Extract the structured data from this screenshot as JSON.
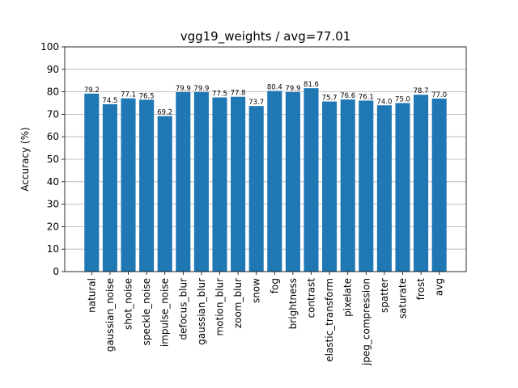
{
  "chart_data": {
    "type": "bar",
    "title": "vgg19_weights / avg=77.01",
    "xlabel": "",
    "ylabel": "Accuracy (%)",
    "ylim": [
      0,
      100
    ],
    "yticks": [
      "0",
      "10",
      "20",
      "30",
      "40",
      "50",
      "60",
      "70",
      "80",
      "90",
      "100"
    ],
    "grid": "horizontal",
    "bar_color": "#1f77b4",
    "categories": [
      "natural",
      "gaussian_noise",
      "shot_noise",
      "speckle_noise",
      "impulse_noise",
      "defocus_blur",
      "gaussian_blur",
      "motion_blur",
      "zoom_blur",
      "snow",
      "fog",
      "brightness",
      "contrast",
      "elastic_transform",
      "pixelate",
      "jpeg_compression",
      "spatter",
      "saturate",
      "frost",
      "avg"
    ],
    "values": [
      79.2,
      74.5,
      77.1,
      76.5,
      69.2,
      79.9,
      79.9,
      77.5,
      77.8,
      73.7,
      80.4,
      79.9,
      81.6,
      75.7,
      76.6,
      76.1,
      74.0,
      75.0,
      78.7,
      77.0
    ],
    "data_labels": [
      "79.2",
      "74.5",
      "77.1",
      "76.5",
      "69.2",
      "79.9",
      "79.9",
      "77.5",
      "77.8",
      "73.7",
      "80.4",
      "79.9",
      "81.6",
      "75.7",
      "76.6",
      "76.1",
      "74.0",
      "75.0",
      "78.7",
      "77.0"
    ]
  }
}
